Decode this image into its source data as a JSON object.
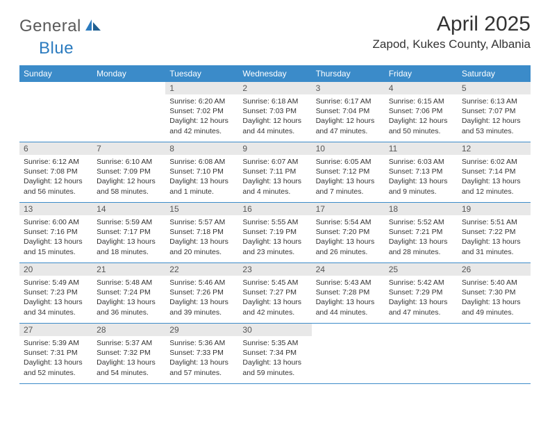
{
  "logo": {
    "text1": "General",
    "text2": "Blue"
  },
  "title": "April 2025",
  "location": "Zapod, Kukes County, Albania",
  "colors": {
    "header_bg": "#3b8bc9",
    "header_text": "#ffffff",
    "daynum_bg": "#e8e8e8",
    "border": "#3b8bc9",
    "logo_gray": "#5a5a5a",
    "logo_blue": "#2b7bbf"
  },
  "weekdays": [
    "Sunday",
    "Monday",
    "Tuesday",
    "Wednesday",
    "Thursday",
    "Friday",
    "Saturday"
  ],
  "weeks": [
    [
      null,
      null,
      {
        "n": "1",
        "sr": "6:20 AM",
        "ss": "7:02 PM",
        "dl": "12 hours and 42 minutes."
      },
      {
        "n": "2",
        "sr": "6:18 AM",
        "ss": "7:03 PM",
        "dl": "12 hours and 44 minutes."
      },
      {
        "n": "3",
        "sr": "6:17 AM",
        "ss": "7:04 PM",
        "dl": "12 hours and 47 minutes."
      },
      {
        "n": "4",
        "sr": "6:15 AM",
        "ss": "7:06 PM",
        "dl": "12 hours and 50 minutes."
      },
      {
        "n": "5",
        "sr": "6:13 AM",
        "ss": "7:07 PM",
        "dl": "12 hours and 53 minutes."
      }
    ],
    [
      {
        "n": "6",
        "sr": "6:12 AM",
        "ss": "7:08 PM",
        "dl": "12 hours and 56 minutes."
      },
      {
        "n": "7",
        "sr": "6:10 AM",
        "ss": "7:09 PM",
        "dl": "12 hours and 58 minutes."
      },
      {
        "n": "8",
        "sr": "6:08 AM",
        "ss": "7:10 PM",
        "dl": "13 hours and 1 minute."
      },
      {
        "n": "9",
        "sr": "6:07 AM",
        "ss": "7:11 PM",
        "dl": "13 hours and 4 minutes."
      },
      {
        "n": "10",
        "sr": "6:05 AM",
        "ss": "7:12 PM",
        "dl": "13 hours and 7 minutes."
      },
      {
        "n": "11",
        "sr": "6:03 AM",
        "ss": "7:13 PM",
        "dl": "13 hours and 9 minutes."
      },
      {
        "n": "12",
        "sr": "6:02 AM",
        "ss": "7:14 PM",
        "dl": "13 hours and 12 minutes."
      }
    ],
    [
      {
        "n": "13",
        "sr": "6:00 AM",
        "ss": "7:16 PM",
        "dl": "13 hours and 15 minutes."
      },
      {
        "n": "14",
        "sr": "5:59 AM",
        "ss": "7:17 PM",
        "dl": "13 hours and 18 minutes."
      },
      {
        "n": "15",
        "sr": "5:57 AM",
        "ss": "7:18 PM",
        "dl": "13 hours and 20 minutes."
      },
      {
        "n": "16",
        "sr": "5:55 AM",
        "ss": "7:19 PM",
        "dl": "13 hours and 23 minutes."
      },
      {
        "n": "17",
        "sr": "5:54 AM",
        "ss": "7:20 PM",
        "dl": "13 hours and 26 minutes."
      },
      {
        "n": "18",
        "sr": "5:52 AM",
        "ss": "7:21 PM",
        "dl": "13 hours and 28 minutes."
      },
      {
        "n": "19",
        "sr": "5:51 AM",
        "ss": "7:22 PM",
        "dl": "13 hours and 31 minutes."
      }
    ],
    [
      {
        "n": "20",
        "sr": "5:49 AM",
        "ss": "7:23 PM",
        "dl": "13 hours and 34 minutes."
      },
      {
        "n": "21",
        "sr": "5:48 AM",
        "ss": "7:24 PM",
        "dl": "13 hours and 36 minutes."
      },
      {
        "n": "22",
        "sr": "5:46 AM",
        "ss": "7:26 PM",
        "dl": "13 hours and 39 minutes."
      },
      {
        "n": "23",
        "sr": "5:45 AM",
        "ss": "7:27 PM",
        "dl": "13 hours and 42 minutes."
      },
      {
        "n": "24",
        "sr": "5:43 AM",
        "ss": "7:28 PM",
        "dl": "13 hours and 44 minutes."
      },
      {
        "n": "25",
        "sr": "5:42 AM",
        "ss": "7:29 PM",
        "dl": "13 hours and 47 minutes."
      },
      {
        "n": "26",
        "sr": "5:40 AM",
        "ss": "7:30 PM",
        "dl": "13 hours and 49 minutes."
      }
    ],
    [
      {
        "n": "27",
        "sr": "5:39 AM",
        "ss": "7:31 PM",
        "dl": "13 hours and 52 minutes."
      },
      {
        "n": "28",
        "sr": "5:37 AM",
        "ss": "7:32 PM",
        "dl": "13 hours and 54 minutes."
      },
      {
        "n": "29",
        "sr": "5:36 AM",
        "ss": "7:33 PM",
        "dl": "13 hours and 57 minutes."
      },
      {
        "n": "30",
        "sr": "5:35 AM",
        "ss": "7:34 PM",
        "dl": "13 hours and 59 minutes."
      },
      null,
      null,
      null
    ]
  ],
  "labels": {
    "sunrise": "Sunrise: ",
    "sunset": "Sunset: ",
    "daylight": "Daylight: "
  }
}
